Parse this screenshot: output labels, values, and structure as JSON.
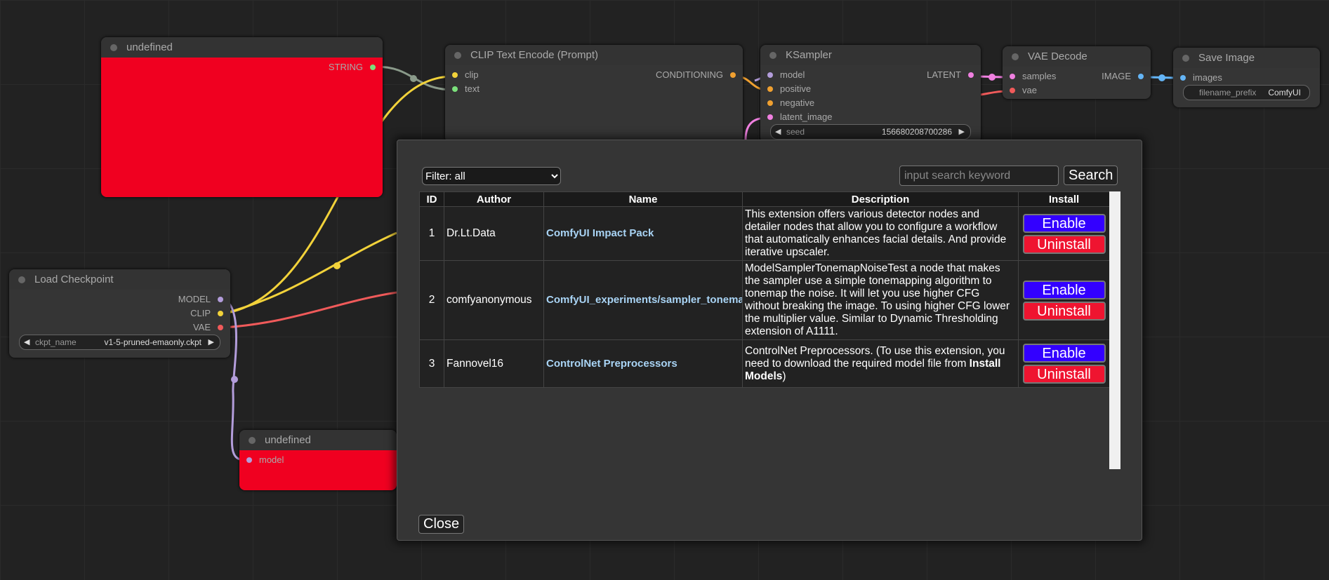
{
  "nodes": [
    {
      "title": "undefined",
      "inputs": [],
      "outputs": [
        {
          "name": "STRING",
          "color": "#7be07b"
        }
      ],
      "widgets": []
    },
    {
      "title": "CLIP Text Encode (Prompt)",
      "inputs": [
        {
          "name": "clip",
          "color": "#f2d23a"
        },
        {
          "name": "text",
          "color": "#7be07b"
        }
      ],
      "outputs": [
        {
          "name": "CONDITIONING",
          "color": "#f0a030"
        }
      ],
      "widgets": []
    },
    {
      "title": "KSampler",
      "inputs": [
        {
          "name": "model",
          "color": "#b39ddb"
        },
        {
          "name": "positive",
          "color": "#f0a030"
        },
        {
          "name": "negative",
          "color": "#f0a030"
        },
        {
          "name": "latent_image",
          "color": "#f080e0"
        }
      ],
      "outputs": [
        {
          "name": "LATENT",
          "color": "#f080e0"
        }
      ],
      "widgets": [
        {
          "name": "seed",
          "value": "156680208700286"
        }
      ]
    },
    {
      "title": "VAE Decode",
      "inputs": [
        {
          "name": "samples",
          "color": "#f080e0"
        },
        {
          "name": "vae",
          "color": "#f05a5a"
        }
      ],
      "outputs": [
        {
          "name": "IMAGE",
          "color": "#64b5f6"
        }
      ],
      "widgets": []
    },
    {
      "title": "Save Image",
      "inputs": [
        {
          "name": "images",
          "color": "#64b5f6"
        }
      ],
      "outputs": [],
      "widgets": [
        {
          "name": "filename_prefix",
          "value": "ComfyUI"
        }
      ]
    },
    {
      "title": "Load Checkpoint",
      "inputs": [],
      "outputs": [
        {
          "name": "MODEL",
          "color": "#b39ddb"
        },
        {
          "name": "CLIP",
          "color": "#f2d23a"
        },
        {
          "name": "VAE",
          "color": "#f05a5a"
        }
      ],
      "widgets": [
        {
          "name": "ckpt_name",
          "value": "v1-5-pruned-emaonly.ckpt"
        }
      ]
    },
    {
      "title": "undefined",
      "inputs": [
        {
          "name": "model",
          "color": "#b39ddb"
        }
      ],
      "outputs": [],
      "widgets": []
    }
  ],
  "dialog": {
    "filter": "Filter: all",
    "search_placeholder": "input search keyword",
    "search_button": "Search",
    "columns": [
      "ID",
      "Author",
      "Name",
      "Description",
      "Install"
    ],
    "rows": [
      {
        "id": 1,
        "author": "Dr.Lt.Data",
        "name": "ComfyUI Impact Pack",
        "description": "This extension offers various detector nodes and detailer nodes that allow you to configure a workflow that automatically enhances facial details. And provide iterative upscaler.",
        "actions": [
          "Enable",
          "Uninstall"
        ]
      },
      {
        "id": 2,
        "author": "comfyanonymous",
        "name": "ComfyUI_experiments/sampler_tonemap",
        "description": "ModelSamplerTonemapNoiseTest a node that makes the sampler use a simple tonemapping algorithm to tonemap the noise. It will let you use higher CFG without breaking the image. To using higher CFG lower the multiplier value. Similar to Dynamic Thresholding extension of A1111.",
        "actions": [
          "Enable",
          "Uninstall"
        ]
      },
      {
        "id": 3,
        "author": "Fannovel16",
        "name": "ControlNet Preprocessors",
        "description": "ControlNet Preprocessors. (To use this extension, you need to download the required model file from ",
        "description_bold": "Install Models",
        "description_end": ")",
        "actions": [
          "Enable",
          "Uninstall"
        ]
      }
    ],
    "close": "Close"
  }
}
